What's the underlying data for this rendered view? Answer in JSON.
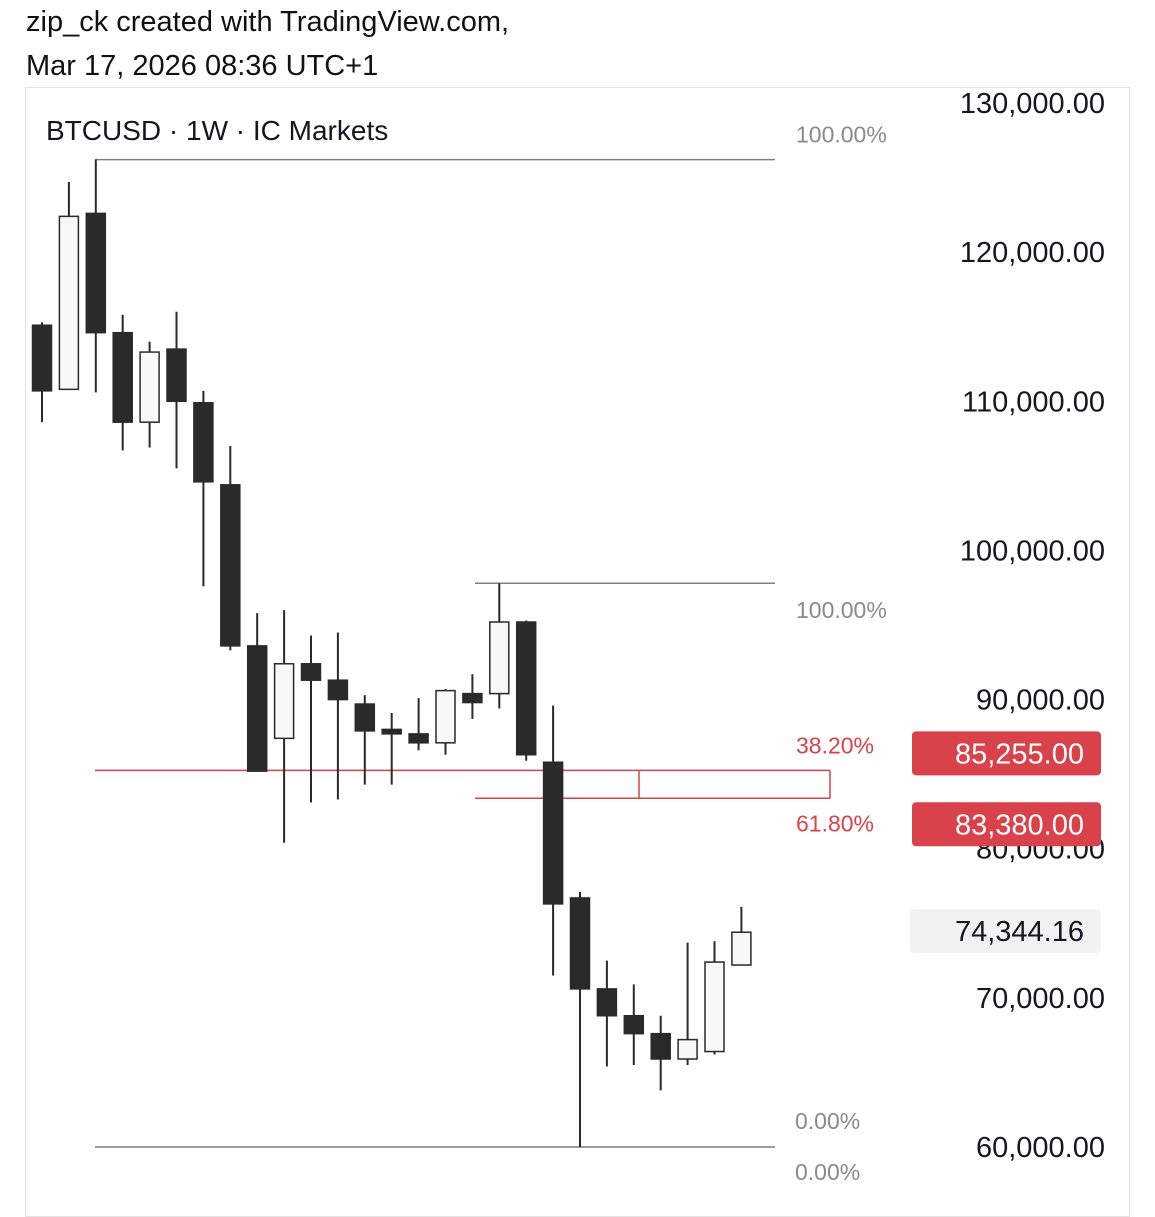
{
  "header": {
    "line1": "zip_ck created with TradingView.com,",
    "line2": "Mar 17, 2026 08:36 UTC+1"
  },
  "chart_data": {
    "type": "candlestick",
    "title": "BTCUSD · 1W · IC Markets",
    "symbol": "BTCUSD",
    "interval": "1W",
    "source": "IC Markets",
    "ylim": [
      58000,
      131500
    ],
    "y_ticks": [
      {
        "value": 130000,
        "label": "130,000.00"
      },
      {
        "value": 120000,
        "label": "120,000.00"
      },
      {
        "value": 110000,
        "label": "110,000.00"
      },
      {
        "value": 100000,
        "label": "100,000.00"
      },
      {
        "value": 90000,
        "label": "90,000.00"
      },
      {
        "value": 80000,
        "label": "80,000.00"
      },
      {
        "value": 70000,
        "label": "70,000.00"
      },
      {
        "value": 60000,
        "label": "60,000.00"
      }
    ],
    "candles": [
      {
        "o": 115100,
        "h": 115300,
        "l": 108600,
        "c": 110700
      },
      {
        "o": 110800,
        "h": 124700,
        "l": 110800,
        "c": 122400
      },
      {
        "o": 122600,
        "h": 126200,
        "l": 110600,
        "c": 114600
      },
      {
        "o": 114600,
        "h": 115800,
        "l": 106700,
        "c": 108600
      },
      {
        "o": 108600,
        "h": 114000,
        "l": 106900,
        "c": 113300
      },
      {
        "o": 113500,
        "h": 116000,
        "l": 105500,
        "c": 110000
      },
      {
        "o": 109900,
        "h": 110700,
        "l": 97600,
        "c": 104600
      },
      {
        "o": 104400,
        "h": 107000,
        "l": 93300,
        "c": 93600
      },
      {
        "o": 93600,
        "h": 95800,
        "l": 85200,
        "c": 85200
      },
      {
        "o": 87400,
        "h": 96000,
        "l": 80400,
        "c": 92400
      },
      {
        "o": 92400,
        "h": 94300,
        "l": 83100,
        "c": 91300
      },
      {
        "o": 91300,
        "h": 94500,
        "l": 83300,
        "c": 90000
      },
      {
        "o": 89700,
        "h": 90300,
        "l": 84300,
        "c": 87900
      },
      {
        "o": 88000,
        "h": 89100,
        "l": 84300,
        "c": 87700
      },
      {
        "o": 87700,
        "h": 90100,
        "l": 86600,
        "c": 87100
      },
      {
        "o": 87100,
        "h": 90700,
        "l": 86300,
        "c": 90600
      },
      {
        "o": 90400,
        "h": 91700,
        "l": 88700,
        "c": 89800
      },
      {
        "o": 90400,
        "h": 97800,
        "l": 89400,
        "c": 95200
      },
      {
        "o": 95200,
        "h": 95300,
        "l": 85900,
        "c": 86300
      },
      {
        "o": 85800,
        "h": 89600,
        "l": 71500,
        "c": 76300
      },
      {
        "o": 76700,
        "h": 77100,
        "l": 60000,
        "c": 70600
      },
      {
        "o": 70600,
        "h": 72500,
        "l": 65400,
        "c": 68800
      },
      {
        "o": 68800,
        "h": 70900,
        "l": 65500,
        "c": 67600
      },
      {
        "o": 67600,
        "h": 68800,
        "l": 63800,
        "c": 65900
      },
      {
        "o": 65900,
        "h": 73700,
        "l": 65500,
        "c": 67200
      },
      {
        "o": 66400,
        "h": 73800,
        "l": 66200,
        "c": 72400
      },
      {
        "o": 72200,
        "h": 76100,
        "l": 72200,
        "c": 74400
      }
    ],
    "current_price": {
      "value": 74344.16,
      "label": "74,344.16"
    },
    "fib_levels": [
      {
        "price": 126200,
        "label": "100.00%"
      },
      {
        "price": 97800,
        "label": "100.00%"
      },
      {
        "price": 85255,
        "label": "38.20%",
        "badge": "85,255.00"
      },
      {
        "price": 83380,
        "label": "61.80%",
        "badge": "83,380.00"
      },
      {
        "price": 60000,
        "label": "0.00%"
      },
      {
        "price": 60000,
        "label": "0.00%"
      }
    ],
    "colors": {
      "bear_candle": "#2a2a2a",
      "bull_candle": "#f8f8f8",
      "fib_line": "#7f7f7f",
      "fib_label": "#8a8a8a",
      "highlight": "#d9424a",
      "price_badge_bg": "#f2f2f2"
    }
  }
}
